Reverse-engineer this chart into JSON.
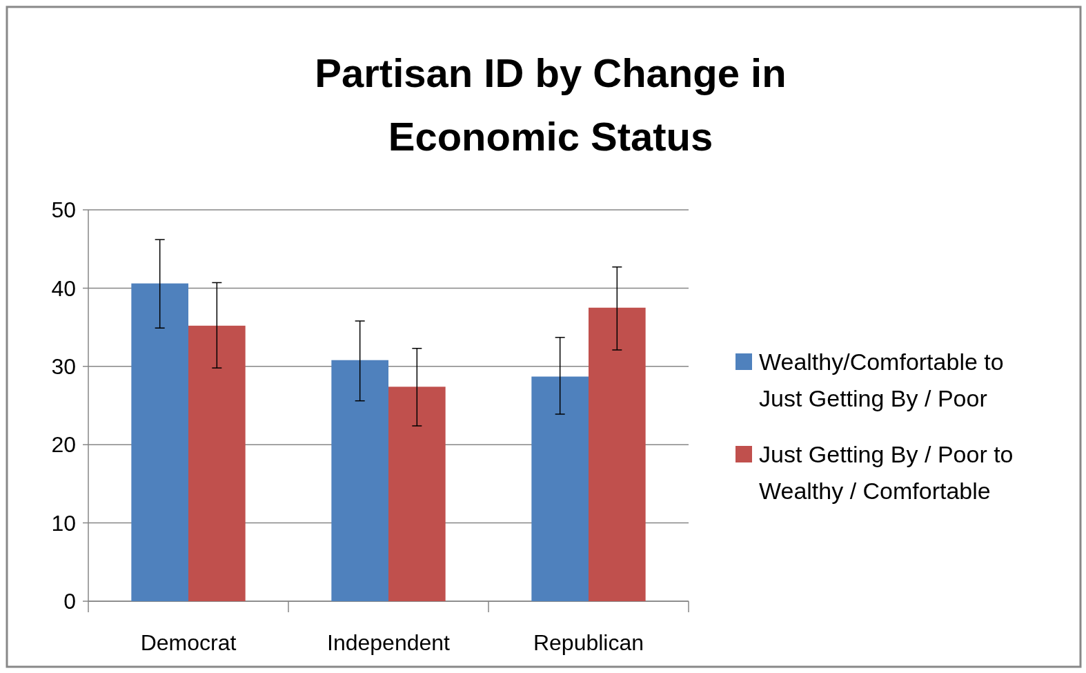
{
  "chart_data": {
    "type": "bar",
    "title": "Partisan ID by Change in Economic Status",
    "categories": [
      "Democrat",
      "Independent",
      "Republican"
    ],
    "series": [
      {
        "name": "Wealthy/Comfortable to Just Getting By / Poor",
        "color": "#4f81bd",
        "values": [
          40.6,
          30.8,
          28.7
        ],
        "errors": [
          [
            34.9,
            46.2
          ],
          [
            25.6,
            35.8
          ],
          [
            23.9,
            33.7
          ]
        ]
      },
      {
        "name": "Just Getting By / Poor to Wealthy / Comfortable",
        "color": "#c0504d",
        "values": [
          35.2,
          27.4,
          37.5
        ],
        "errors": [
          [
            29.8,
            40.7
          ],
          [
            22.4,
            32.3
          ],
          [
            32.1,
            42.7
          ]
        ]
      }
    ],
    "ylim": [
      0,
      50
    ],
    "yticks": [
      0,
      10,
      20,
      30,
      40,
      50
    ],
    "grid": "y",
    "legend": "right"
  }
}
